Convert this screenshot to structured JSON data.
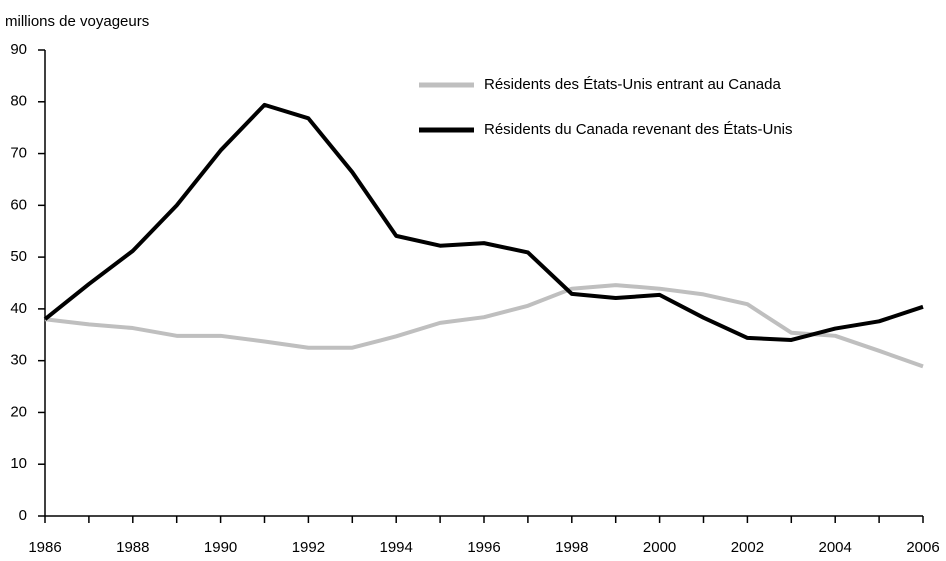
{
  "chart_data": {
    "type": "line",
    "y_label": "millions de voyageurs",
    "x": [
      1986,
      1987,
      1988,
      1989,
      1990,
      1991,
      1992,
      1993,
      1994,
      1995,
      1996,
      1997,
      1998,
      1999,
      2000,
      2001,
      2002,
      2003,
      2004,
      2005,
      2006
    ],
    "series": [
      {
        "name": "Résidents des États-Unis entrant au Canada",
        "color": "#bfbfbf",
        "values": [
          38,
          37,
          36.3,
          34.8,
          34.8,
          33.7,
          32.5,
          32.5,
          34.7,
          37.3,
          38.4,
          40.6,
          43.9,
          44.6,
          43.9,
          42.8,
          40.9,
          35.4,
          34.8,
          31.9,
          28.9
        ]
      },
      {
        "name": "Résidents du Canada revenant des États-Unis",
        "color": "#000000",
        "values": [
          38,
          44.8,
          51.2,
          60,
          70.6,
          79.4,
          76.8,
          66.4,
          54.1,
          52.2,
          52.7,
          50.9,
          42.9,
          42.1,
          42.7,
          38.3,
          34.4,
          34,
          36.2,
          37.6,
          40.4
        ]
      }
    ],
    "xlim": [
      1986,
      2006
    ],
    "xticks": [
      1986,
      1988,
      1990,
      1992,
      1994,
      1996,
      1998,
      2000,
      2002,
      2004,
      2006
    ],
    "ylim": [
      0,
      90
    ],
    "yticks": [
      0,
      10,
      20,
      30,
      40,
      50,
      60,
      70,
      80,
      90
    ],
    "grid": false,
    "legend": "top-right"
  }
}
